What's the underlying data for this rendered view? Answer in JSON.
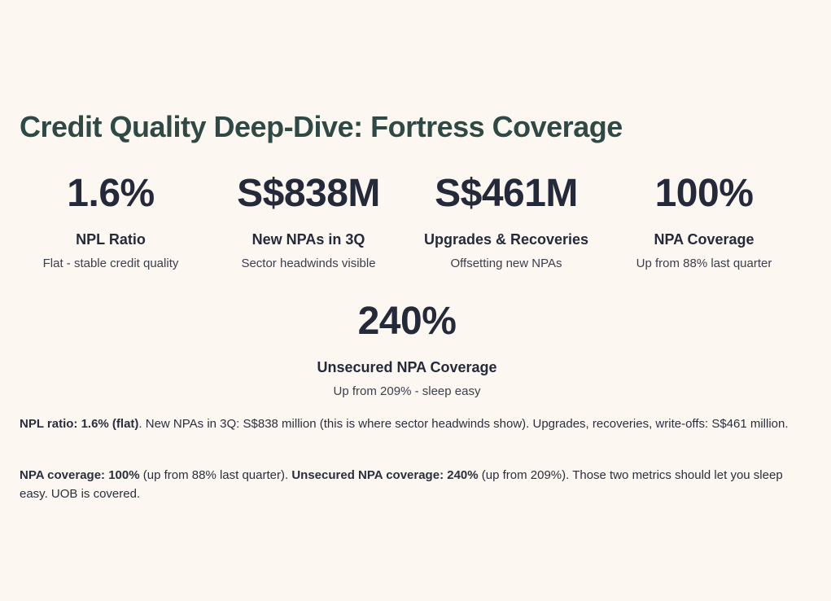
{
  "title": "Credit Quality Deep-Dive: Fortress Coverage",
  "stats": [
    {
      "value": "1.6%",
      "label": "NPL Ratio",
      "sub": "Flat - stable credit quality"
    },
    {
      "value": "S$838M",
      "label": "New NPAs in 3Q",
      "sub": "Sector headwinds visible"
    },
    {
      "value": "S$461M",
      "label": "Upgrades & Recoveries",
      "sub": "Offsetting new NPAs"
    },
    {
      "value": "100%",
      "label": "NPA Coverage",
      "sub": "Up from 88% last quarter"
    },
    {
      "value": "240%",
      "label": "Unsecured NPA Coverage",
      "sub": "Up from 209% - sleep easy"
    }
  ],
  "paragraphs": {
    "p1": {
      "bold1": "NPL ratio: 1.6% (flat)",
      "text1": ". New NPAs in 3Q: S$838 million (this is where sector headwinds show). Upgrades, recoveries, write-offs: S$461 million."
    },
    "p2": {
      "bold1": "NPA coverage: 100%",
      "text1": " (up from 88% last quarter). ",
      "bold2": "Unsecured NPA coverage: 240%",
      "text2": " (up from 209%). Those two metrics should let you sleep easy. UOB is covered."
    }
  }
}
